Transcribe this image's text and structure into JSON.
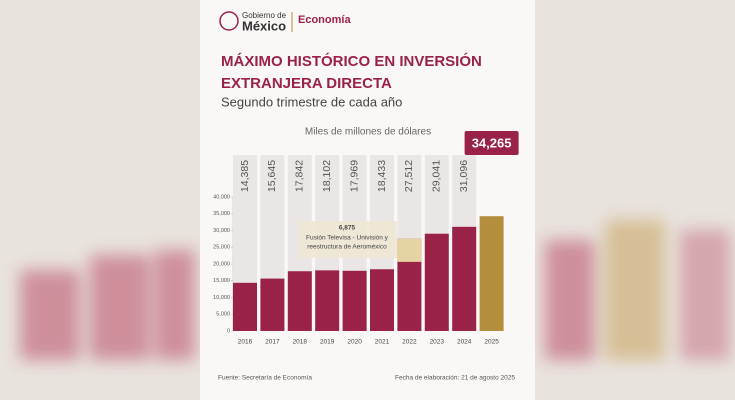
{
  "logo": {
    "line1": "Gobierno de",
    "line2": "México",
    "agency": "Economía"
  },
  "chart_data": {
    "type": "bar",
    "title": [
      "MÁXIMO HISTÓRICO EN INVERSIÓN",
      "EXTRANJERA DIRECTA"
    ],
    "subtitle": "Segundo trimestre de cada año",
    "y_label": "Miles de millones de dólares",
    "categories": [
      "2016",
      "2017",
      "2018",
      "2019",
      "2020",
      "2021",
      "2022",
      "2023",
      "2024",
      "2025"
    ],
    "values": [
      14385,
      15645,
      17842,
      18102,
      17969,
      18433,
      27512,
      29041,
      31096,
      34265
    ],
    "value_labels": [
      "14,385",
      "15,645",
      "17,842",
      "18,102",
      "17,969",
      "18,433",
      "27,512",
      "29,041",
      "31,096",
      "34,265"
    ],
    "colors": [
      "#9b2247",
      "#9b2247",
      "#9b2247",
      "#9b2247",
      "#9b2247",
      "#9b2247",
      "#9b2247",
      "#9b2247",
      "#9b2247",
      "#b38e3d"
    ],
    "annotation": {
      "category": "2022",
      "value": 6875,
      "label": "6,875",
      "color": "#e6d3a3",
      "text": [
        "Fusión Televisa - Univisión y",
        "reestructura de Aeroméxico"
      ]
    },
    "ylim": [
      0,
      40000
    ],
    "yticks": [
      0,
      {
        "value": 5000,
        "label": "5,000"
      },
      {
        "value": 10000,
        "label": "10,000"
      },
      {
        "value": 15000,
        "label": "15,000"
      },
      {
        "value": 20000,
        "label": "20,000"
      },
      {
        "value": 25000,
        "label": "25,000"
      },
      {
        "value": 30000,
        "label": "30,000"
      },
      {
        "value": 35000,
        "label": "35,000"
      },
      {
        "value": 40000,
        "label": "40,000"
      }
    ],
    "source": "Fuente: Secretaría de Economía",
    "date": "Fecha de elaboración: 21 de agosto 2025"
  }
}
